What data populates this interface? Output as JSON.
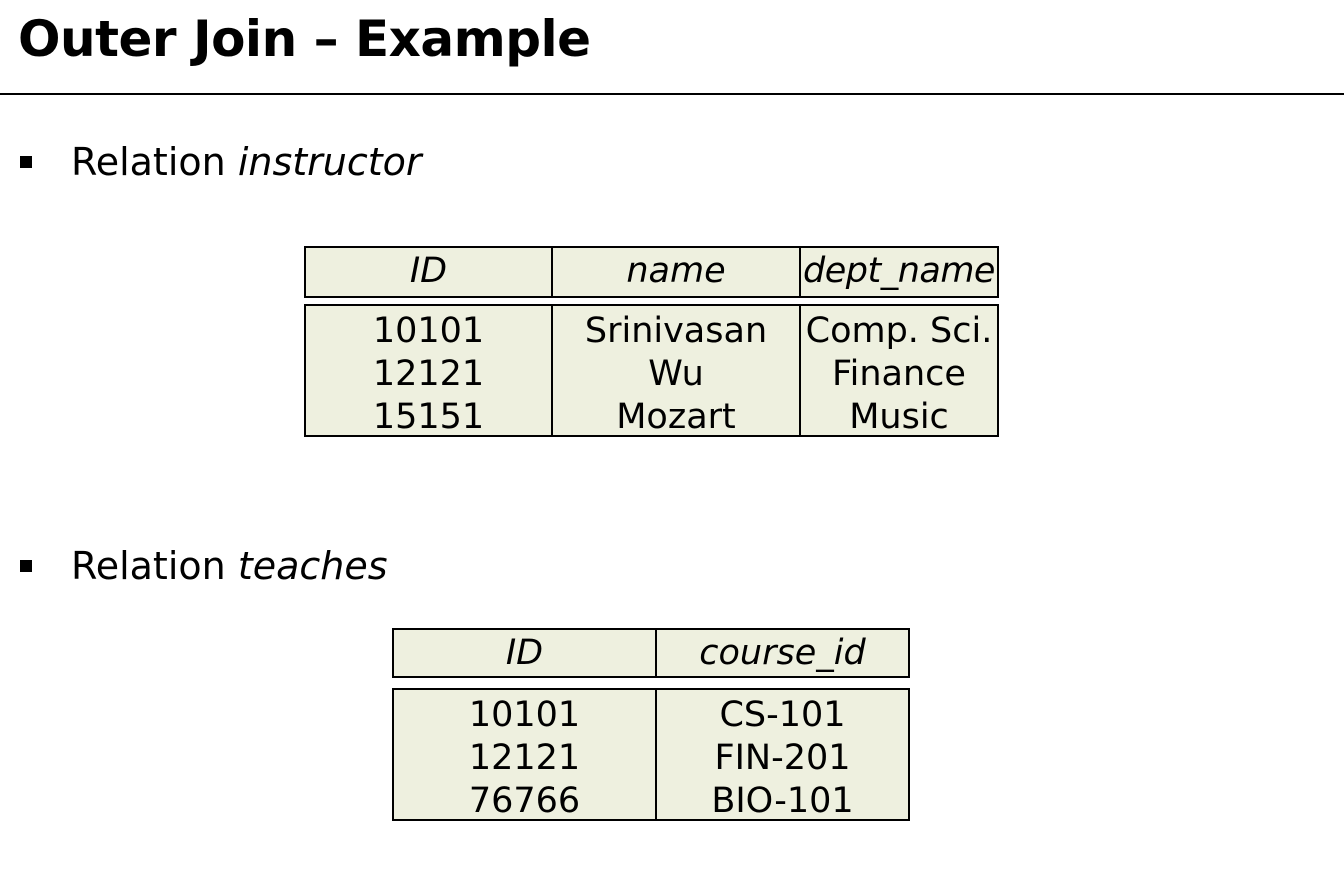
{
  "slide": {
    "title": "Outer Join – Example"
  },
  "bullets": [
    {
      "prefix": "Relation",
      "relation_name": "instructor"
    },
    {
      "prefix": "Relation",
      "relation_name": "teaches"
    }
  ],
  "instructor": {
    "columns": [
      "ID",
      "name",
      "dept_name"
    ],
    "rows": [
      [
        "10101",
        "Srinivasan",
        "Comp. Sci."
      ],
      [
        "12121",
        "Wu",
        "Finance"
      ],
      [
        "15151",
        "Mozart",
        "Music"
      ]
    ]
  },
  "teaches": {
    "columns": [
      "ID",
      "course_id"
    ],
    "rows": [
      [
        "10101",
        "CS-101"
      ],
      [
        "12121",
        "FIN-201"
      ],
      [
        "76766",
        "BIO-101"
      ]
    ]
  }
}
